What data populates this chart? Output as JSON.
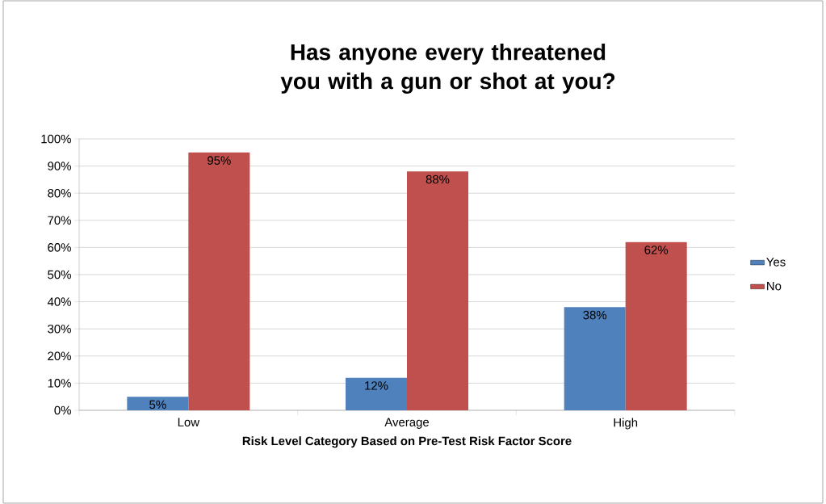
{
  "chart_data": {
    "type": "bar",
    "title": "Has anyone every threatened you with a gun or shot at you?",
    "xlabel": "Risk Level Category Based on Pre-Test Risk Factor Score",
    "categories": [
      "Low",
      "Average",
      "High"
    ],
    "series": [
      {
        "name": "Yes",
        "color": "#4f81bd",
        "values": [
          5,
          12,
          38
        ],
        "value_labels": [
          "5%",
          "12%",
          "38%"
        ]
      },
      {
        "name": "No",
        "color": "#c0504d",
        "values": [
          95,
          88,
          62
        ],
        "value_labels": [
          "95%",
          "88%",
          "62%"
        ]
      }
    ],
    "ylim": [
      0,
      100
    ],
    "yticks": [
      {
        "value": 0,
        "label": "0%"
      },
      {
        "value": 10,
        "label": "10%"
      },
      {
        "value": 20,
        "label": "20%"
      },
      {
        "value": 30,
        "label": "30%"
      },
      {
        "value": 40,
        "label": "40%"
      },
      {
        "value": 50,
        "label": "50%"
      },
      {
        "value": 60,
        "label": "60%"
      },
      {
        "value": 70,
        "label": "70%"
      },
      {
        "value": 80,
        "label": "80%"
      },
      {
        "value": 90,
        "label": "90%"
      },
      {
        "value": 100,
        "label": "100%"
      }
    ],
    "grid": "y",
    "legend": "right"
  }
}
